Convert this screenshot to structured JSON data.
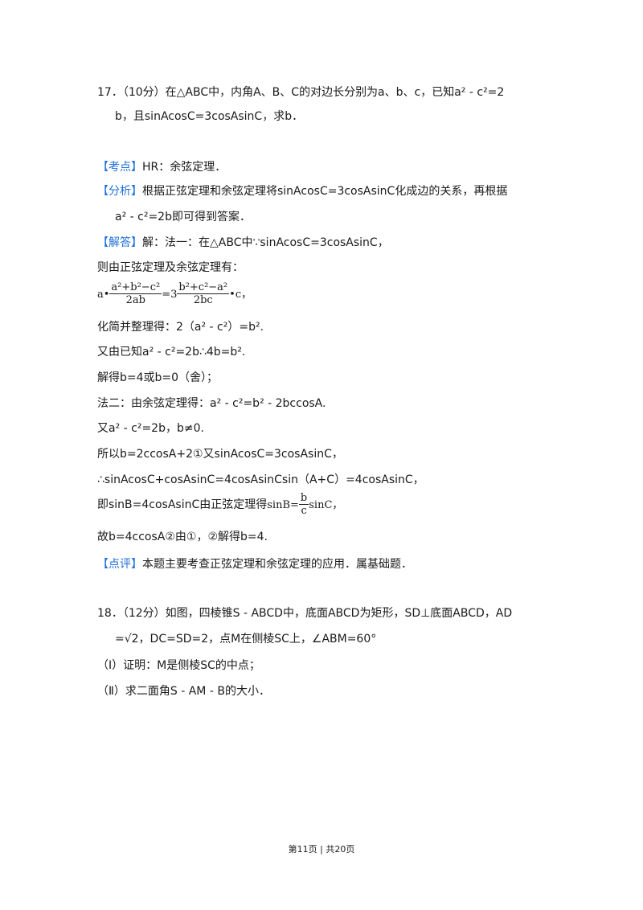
{
  "q17": {
    "line1": "17．（10分）在△ABC中，内角A、B、C的对边长分别为a、b、c，已知a² - c²=2",
    "line2": "b，且sinAcosC=3cosAsinC，求b．"
  },
  "kaodian": {
    "tag": "【考点】",
    "text": "HR：余弦定理．"
  },
  "fenxi": {
    "tag": "【分析】",
    "text": "根据正弦定理和余弦定理将sinAcosC=3cosAsinC化成边的关系，再根据",
    "text2": "a² - c²=2b即可得到答案．"
  },
  "jieda": {
    "tag": "【解答】",
    "text": "解：法一：在△ABC中∵sinAcosC=3cosAsinC，",
    "l2": "则由正弦定理及余弦定理有：",
    "formula": {
      "a": "a•",
      "num1": "a²+b²−c²",
      "den1": "2ab",
      "eq": "=3",
      "num2": "b²+c²−a²",
      "den2": "2bc",
      "tail": "•c，"
    },
    "l4": "化简并整理得：2（a² - c²）=b².",
    "l5": "又由已知a² - c²=2b∴4b=b².",
    "l6": "解得b=4或b=0（舍）；",
    "l7": "法二：由余弦定理得：a² - c²=b² - 2bccosA.",
    "l8": "又a² - c²=2b，b≠0.",
    "l9": "所以b=2ccosA+2①又sinAcosC=3cosAsinC，",
    "l10": "∴sinAcosC+cosAsinC=4cosAsinCsin（A+C）=4cosAsinC，",
    "l11a": "即sinB=4cosAsinC由正弦定理得",
    "l11f": {
      "lhs": "sinB=",
      "num": "b",
      "den": "c",
      "rhs": "sinC，"
    },
    "l12": "故b=4ccosA②由①，②解得b=4."
  },
  "dianping": {
    "tag": "【点评】",
    "text": "本题主要考查正弦定理和余弦定理的应用．属基础题．"
  },
  "q18": {
    "line1": "18．（12分）如图，四棱锥S - ABCD中，底面ABCD为矩形，SD⊥底面ABCD，AD",
    "line2": "=√2，DC=SD=2，点M在侧棱SC上，∠ABM=60°",
    "part1": "（I）证明：M是侧棱SC的中点；",
    "part2": "（Ⅱ）求二面角S - AM - B的大小．"
  },
  "footer": "第11页 | 共20页",
  "colors": {
    "tag": "#1e6fd9",
    "text": "#1a1a1a"
  }
}
